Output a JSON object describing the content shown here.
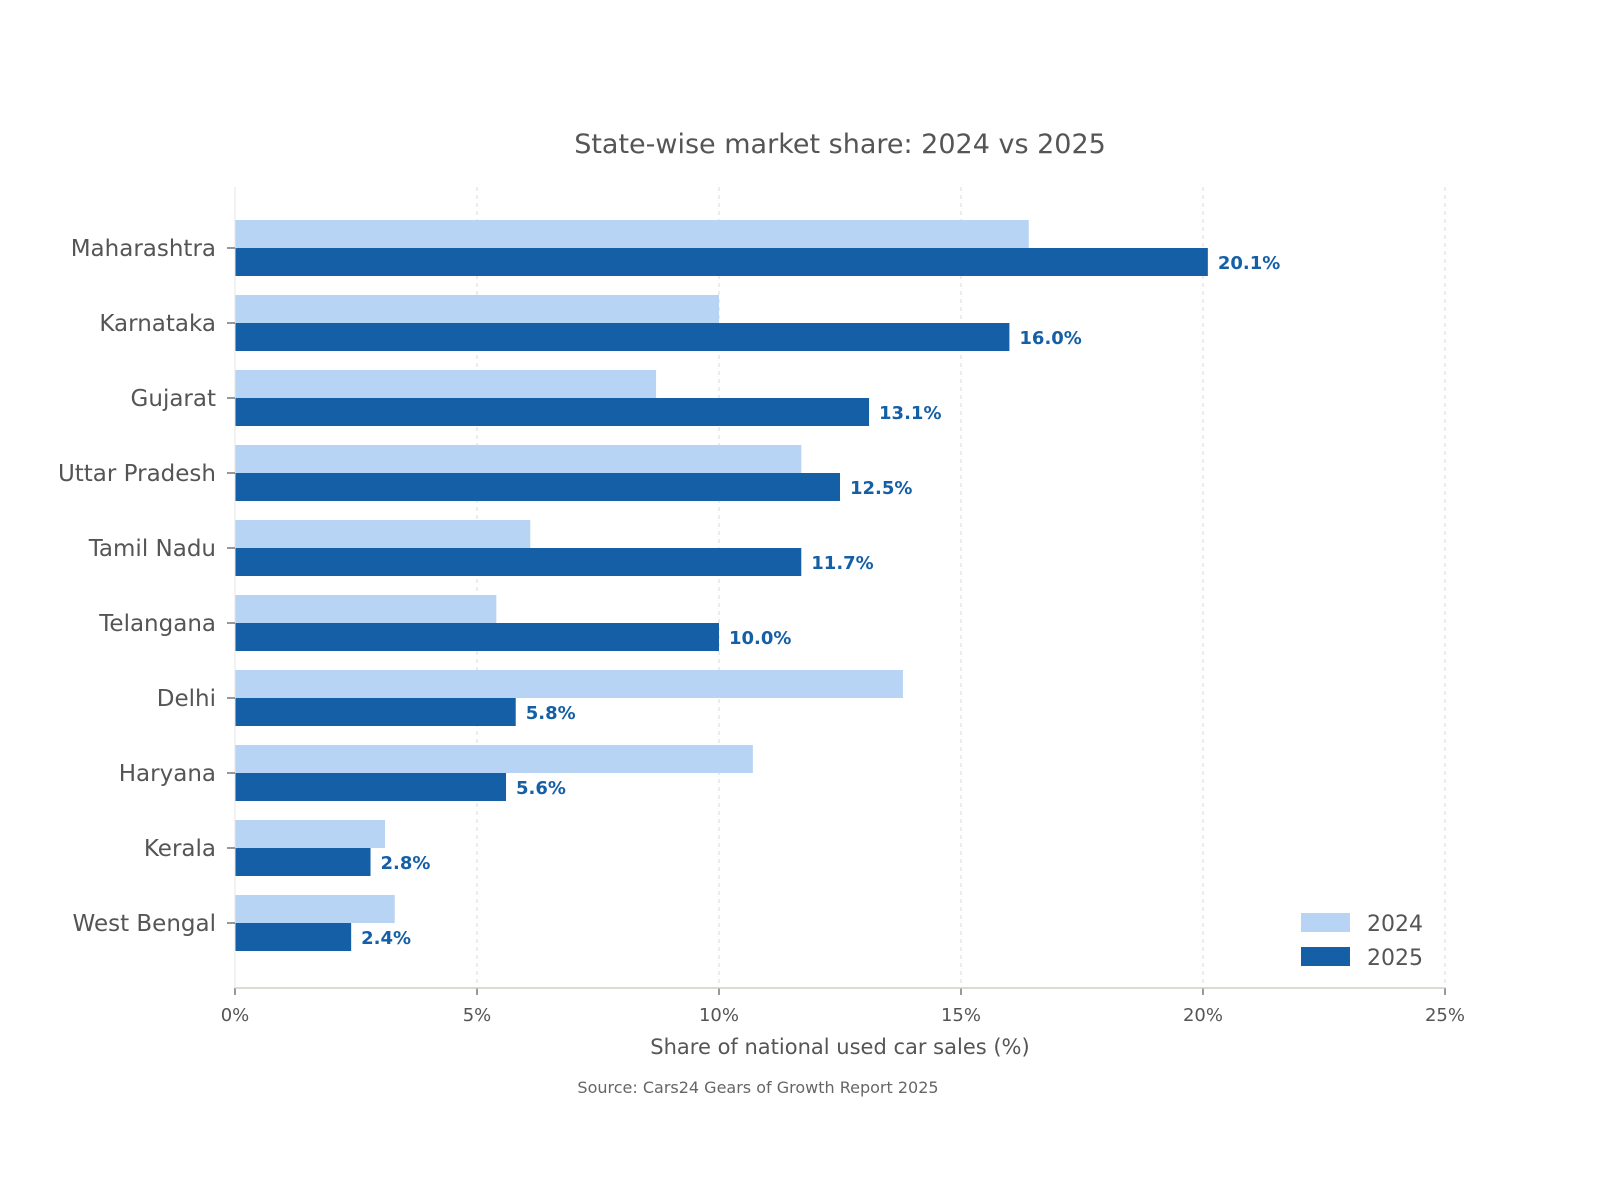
{
  "chart_data": {
    "type": "bar",
    "orientation": "horizontal",
    "title": "State-wise market share: 2024 vs 2025",
    "xlabel": "Share of national used car sales (%)",
    "ylabel": "",
    "source": "Source: Cars24 Gears of Growth Report 2025",
    "xlim": [
      0,
      25
    ],
    "xticks": [
      0,
      5,
      10,
      15,
      20,
      25
    ],
    "xtick_labels": [
      "0%",
      "5%",
      "10%",
      "15%",
      "20%",
      "25%"
    ],
    "grid": "vertical dashed",
    "legend_position": "bottom-right",
    "categories": [
      "Maharashtra",
      "Karnataka",
      "Gujarat",
      "Uttar Pradesh",
      "Tamil Nadu",
      "Telangana",
      "Delhi",
      "Haryana",
      "Kerala",
      "West Bengal"
    ],
    "series": [
      {
        "name": "2024",
        "color": "#b7d4f4",
        "values": [
          16.4,
          10.0,
          8.7,
          11.7,
          6.1,
          5.4,
          13.8,
          10.7,
          3.1,
          3.3
        ]
      },
      {
        "name": "2025",
        "color": "#155fa6",
        "values": [
          20.1,
          16.0,
          13.1,
          12.5,
          11.7,
          10.0,
          5.8,
          5.6,
          2.8,
          2.4
        ],
        "data_labels": [
          "20.1%",
          "16.0%",
          "13.1%",
          "12.5%",
          "11.7%",
          "10.0%",
          "5.8%",
          "5.6%",
          "2.8%",
          "2.4%"
        ]
      }
    ]
  }
}
